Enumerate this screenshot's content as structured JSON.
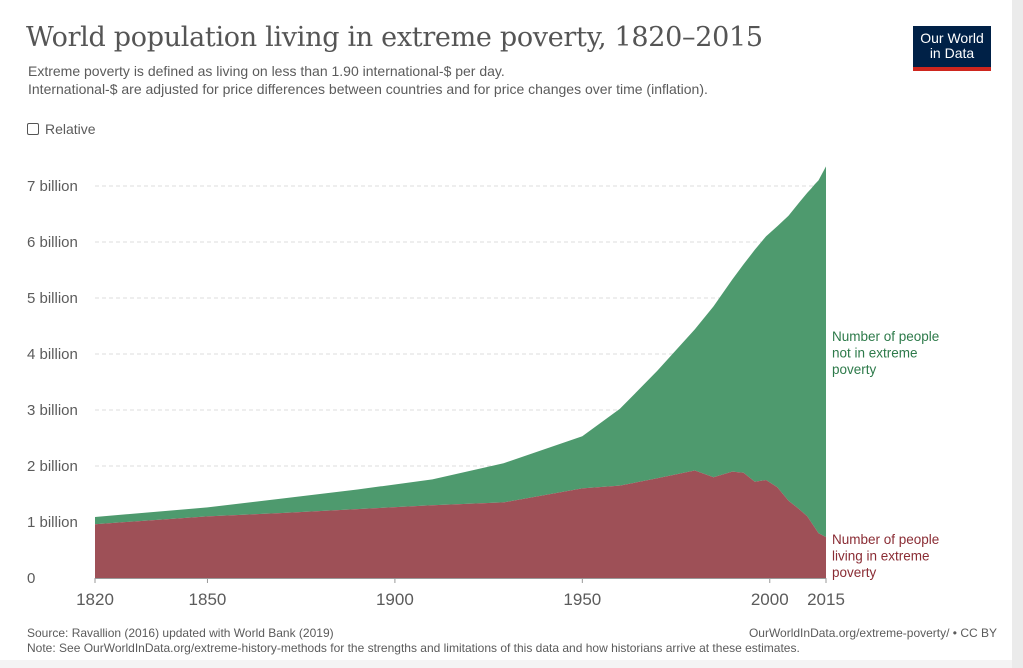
{
  "title": "World population living in extreme poverty, 1820–2015",
  "subtitle_line1": "Extreme poverty is defined as living on less than 1.90 international-$ per day.",
  "subtitle_line2": "International-$ are adjusted for price differences between countries and for price changes over time (inflation).",
  "logo_line1": "Our World",
  "logo_line2": "in Data",
  "relative_toggle_label": "Relative",
  "source_text": "Source: Ravallion (2016) updated with World Bank (2019)",
  "source_url_text": "OurWorldInData.org/extreme-poverty/ • CC BY",
  "note_text": "Note: See OurWorldInData.org/extreme-history-methods for the strengths and limitations of this data and how historians arrive at these estimates.",
  "colors": {
    "not_in_poverty": "#4e9a6e",
    "in_poverty": "#9e5057",
    "not_in_poverty_label": "#2d7a4a",
    "in_poverty_label": "#8a2c34",
    "grid": "#dddddd",
    "axis_text": "#5b5b5b"
  },
  "chart_data": {
    "type": "area",
    "stacked": true,
    "x_ticks": [
      1820,
      1850,
      1900,
      1950,
      2000,
      2015
    ],
    "y_ticks": [
      0,
      1,
      2,
      3,
      4,
      5,
      6,
      7
    ],
    "y_tick_labels": [
      "0",
      "1 billion",
      "2 billion",
      "3 billion",
      "4 billion",
      "5 billion",
      "6 billion",
      "7 billion"
    ],
    "xlim": [
      1820,
      2015
    ],
    "ylim": [
      0,
      7.4
    ],
    "grid": "horizontal dashed",
    "x": [
      1820,
      1850,
      1870,
      1890,
      1910,
      1929,
      1950,
      1960,
      1970,
      1980,
      1985,
      1990,
      1993,
      1996,
      1999,
      2002,
      2005,
      2008,
      2010,
      2011,
      2012,
      2013,
      2015
    ],
    "series": [
      {
        "name": "Number of people living in extreme poverty",
        "label_lines": [
          "Number of people",
          "living in extreme",
          "poverty"
        ],
        "values": [
          0.96,
          1.1,
          1.16,
          1.23,
          1.3,
          1.35,
          1.6,
          1.65,
          1.78,
          1.92,
          1.8,
          1.9,
          1.88,
          1.72,
          1.75,
          1.62,
          1.38,
          1.22,
          1.1,
          1.0,
          0.9,
          0.8,
          0.73
        ]
      },
      {
        "name": "Number of people not in extreme poverty",
        "label_lines": [
          "Number of people",
          "not in extreme",
          "poverty"
        ],
        "values": [
          0.13,
          0.16,
          0.26,
          0.35,
          0.46,
          0.7,
          0.93,
          1.37,
          1.92,
          2.52,
          3.05,
          3.43,
          3.72,
          4.14,
          4.35,
          4.66,
          5.09,
          5.5,
          5.78,
          5.95,
          6.13,
          6.3,
          6.62
        ]
      }
    ]
  }
}
